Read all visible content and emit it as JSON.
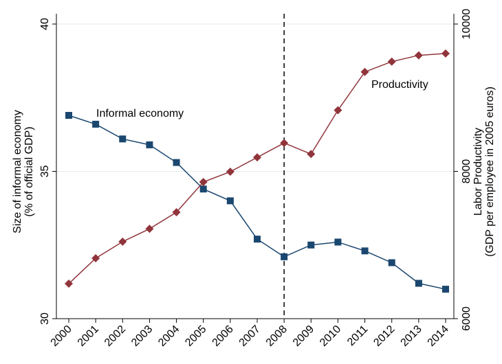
{
  "chart_data": {
    "type": "line",
    "categories": [
      "2000",
      "2001",
      "2002",
      "2003",
      "2004",
      "2005",
      "2006",
      "2007",
      "2008",
      "2009",
      "2010",
      "2011",
      "2012",
      "2013",
      "2014"
    ],
    "series": [
      {
        "name": "Informal economy",
        "color": "#1a476f",
        "marker": "square",
        "values": [
          36.9,
          36.6,
          36.1,
          35.9,
          35.3,
          34.4,
          34.0,
          32.7,
          32.1,
          32.5,
          32.6,
          32.3,
          31.9,
          31.2,
          31.0
        ]
      },
      {
        "name": "Productivity",
        "color": "#90353b",
        "marker": "diamond",
        "axis": "y2",
        "values": [
          6475,
          6820,
          7045,
          7220,
          7445,
          7855,
          7995,
          8190,
          8385,
          8235,
          8830,
          9350,
          9490,
          9575,
          9600
        ]
      }
    ],
    "ylabel": [
      "Size of informal economy",
      "(% of official GDP)"
    ],
    "y2label": [
      "Labor Productivity",
      "(GDP per employee in 2005 euros)"
    ],
    "ylim": [
      30,
      40
    ],
    "yticks": [
      30,
      35,
      40
    ],
    "y2lim": [
      6000,
      10000
    ],
    "y2ticks": [
      6000,
      8000,
      10000
    ],
    "grid": true,
    "vline": "2008"
  }
}
